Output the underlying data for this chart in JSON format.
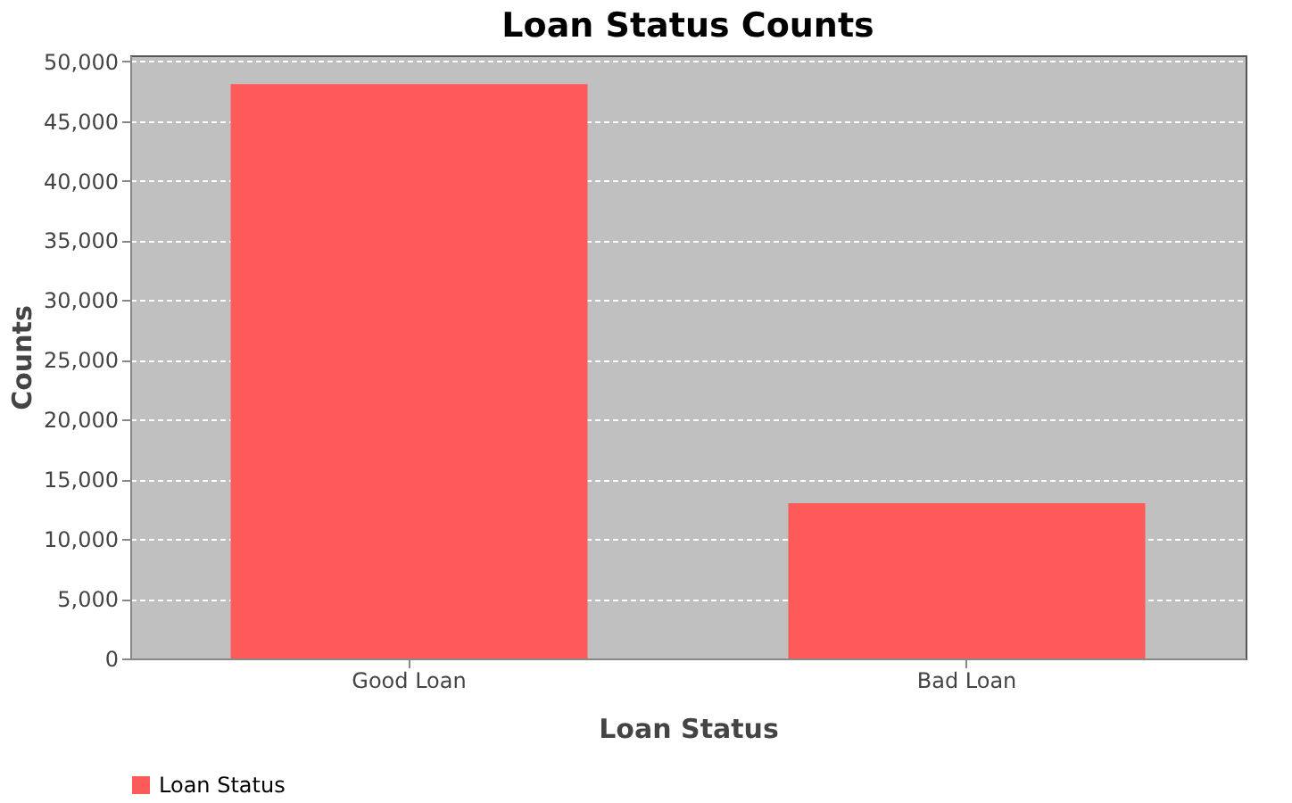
{
  "chart_data": {
    "type": "bar",
    "title": "Loan Status Counts",
    "xlabel": "Loan Status",
    "ylabel": "Counts",
    "categories": [
      "Good Loan",
      "Bad Loan"
    ],
    "series": [
      {
        "name": "Loan Status",
        "color": "#ff5a5a",
        "values": [
          48100,
          13000
        ]
      }
    ],
    "ylim": [
      0,
      50500
    ],
    "yticks": [
      0,
      {
        "value": 5000,
        "label": "5,000"
      },
      {
        "value": 10000,
        "label": "10,000"
      },
      {
        "value": 15000,
        "label": "15,000"
      },
      {
        "value": 20000,
        "label": "20,000"
      },
      {
        "value": 25000,
        "label": "25,000"
      },
      {
        "value": 30000,
        "label": "30,000"
      },
      {
        "value": 35000,
        "label": "35,000"
      },
      {
        "value": 40000,
        "label": "40,000"
      },
      {
        "value": 45000,
        "label": "45,000"
      },
      {
        "value": 50000,
        "label": "50,000"
      }
    ],
    "grid": "y",
    "legend": "bottom"
  }
}
